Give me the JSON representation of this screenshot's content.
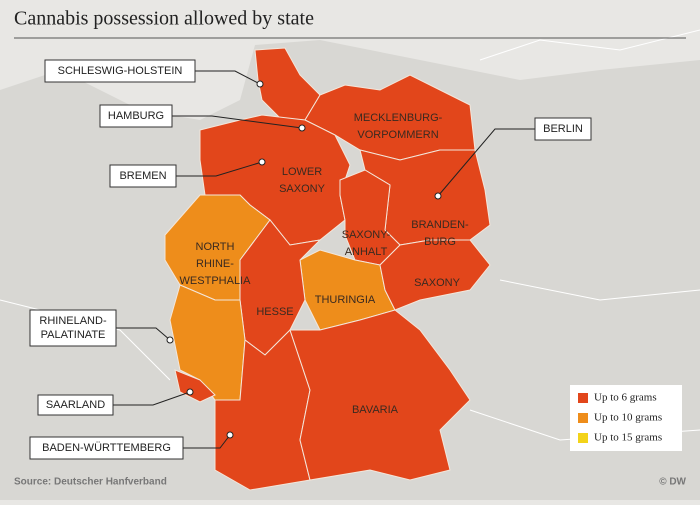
{
  "header": {
    "title": "Cannabis possession allowed by state"
  },
  "states": [
    {
      "label": [
        "SCHLESWIG-HOLSTEIN"
      ],
      "color": "#e2461b"
    },
    {
      "label": [
        "HAMBURG"
      ],
      "color": "#e2461b"
    },
    {
      "label": [
        "BREMEN"
      ],
      "color": "#e2461b"
    },
    {
      "label": [
        "MECKLENBURG-",
        "VORPOMMERN"
      ],
      "color": "#e2461b"
    },
    {
      "label": [
        "LOWER",
        "SAXONY"
      ],
      "color": "#e2461b"
    },
    {
      "label": [
        "BERLIN"
      ],
      "color": "#f3d31a"
    },
    {
      "label": [
        "BRANDEN-",
        "BURG"
      ],
      "color": "#e2461b"
    },
    {
      "label": [
        "SAXONY-",
        "ANHALT"
      ],
      "color": "#e2461b"
    },
    {
      "label": [
        "NORTH",
        "RHINE-",
        "WESTPHALIA"
      ],
      "color": "#ee8d1b"
    },
    {
      "label": [
        "THURINGIA"
      ],
      "color": "#ee8d1b"
    },
    {
      "label": [
        "SAXONY"
      ],
      "color": "#e2461b"
    },
    {
      "label": [
        "HESSE"
      ],
      "color": "#e2461b"
    },
    {
      "label": [
        "RHINELAND-",
        "PALATINATE"
      ],
      "color": "#ee8d1b"
    },
    {
      "label": [
        "SAARLAND"
      ],
      "color": "#e2461b"
    },
    {
      "label": [
        "BADEN-WÜRTTEMBERG"
      ],
      "color": "#e2461b"
    },
    {
      "label": [
        "BAVARIA"
      ],
      "color": "#e2461b"
    }
  ],
  "legend": [
    {
      "label": "Up to 6 grams",
      "color": "#e2461b"
    },
    {
      "label": "Up to 10 grams",
      "color": "#ee8d1b"
    },
    {
      "label": "Up to 15 grams",
      "color": "#f3d31a"
    }
  ],
  "footer": {
    "source": "Source: Deutscher Hanfverband",
    "credit": "© DW"
  }
}
